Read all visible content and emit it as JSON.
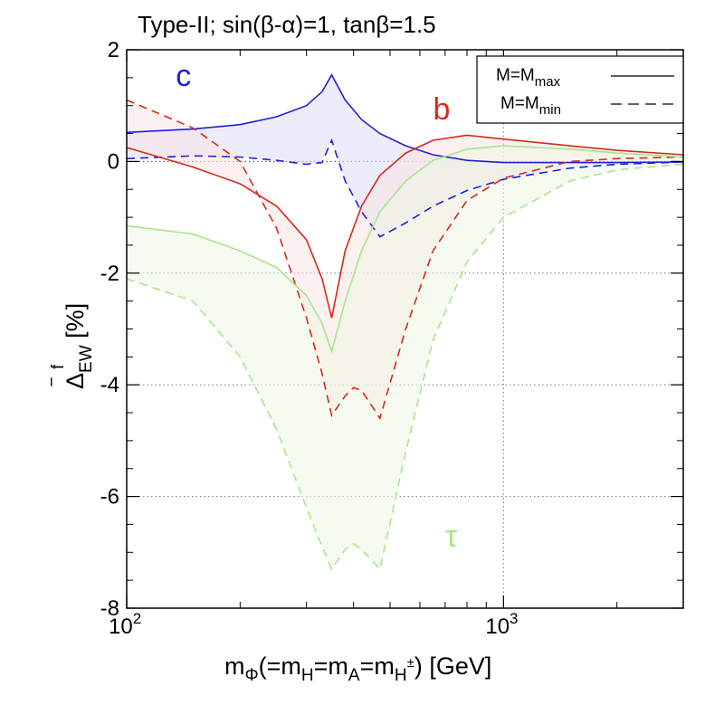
{
  "chart_data": {
    "type": "line",
    "title": "Type-II; sin(β-α)=1, tanβ=1.5",
    "xlabel": {
      "base": "m",
      "base_sub": "Φ",
      "eq1": "(=m",
      "eq1_sub": "H",
      "eq2": "=m",
      "eq2_sub": "A",
      "eq3": "=m",
      "eq3_sub": "H",
      "eq3_sup": "±",
      "tail": ") [GeV]"
    },
    "ylabel": {
      "base": "Δ",
      "overline": "‾",
      "sup": "f",
      "sub": "EW",
      "tail": " [%]"
    },
    "xscale": "log",
    "xlim": [
      100,
      3000
    ],
    "ylim": [
      -8,
      2
    ],
    "x_ticks": [
      {
        "value": 100,
        "mantissa": "10",
        "exp": "2"
      },
      {
        "value": 1000,
        "mantissa": "10",
        "exp": "3"
      }
    ],
    "y_ticks": [
      {
        "value": 2,
        "label": "2"
      },
      {
        "value": 0,
        "label": "0"
      },
      {
        "value": -2,
        "label": "-2"
      },
      {
        "value": -4,
        "label": "-4"
      },
      {
        "value": -6,
        "label": "-6"
      },
      {
        "value": -8,
        "label": "-8"
      }
    ],
    "legend": {
      "position": "top-right",
      "entries": [
        {
          "prefix": "M=M",
          "sub": "max",
          "style": "solid"
        },
        {
          "prefix": "M=M",
          "sub": "min",
          "style": "dashed"
        }
      ]
    },
    "series": [
      {
        "name": "c",
        "label": "c",
        "color": "#1f1fdc",
        "fill": "#dcdcf6",
        "label_at": {
          "x": 135,
          "y": 1.35
        },
        "max": [
          [
            100,
            0.52
          ],
          [
            150,
            0.58
          ],
          [
            200,
            0.66
          ],
          [
            250,
            0.8
          ],
          [
            300,
            1.0
          ],
          [
            330,
            1.25
          ],
          [
            350,
            1.55
          ],
          [
            380,
            1.1
          ],
          [
            420,
            0.75
          ],
          [
            470,
            0.5
          ],
          [
            550,
            0.28
          ],
          [
            650,
            0.12
          ],
          [
            800,
            0.02
          ],
          [
            1000,
            -0.02
          ],
          [
            1500,
            -0.02
          ],
          [
            2000,
            -0.02
          ],
          [
            3000,
            -0.01
          ]
        ],
        "min": [
          [
            100,
            0.05
          ],
          [
            150,
            0.1
          ],
          [
            200,
            0.08
          ],
          [
            250,
            0.02
          ],
          [
            300,
            -0.05
          ],
          [
            330,
            -0.02
          ],
          [
            350,
            0.38
          ],
          [
            380,
            -0.35
          ],
          [
            420,
            -0.9
          ],
          [
            470,
            -1.35
          ],
          [
            550,
            -1.1
          ],
          [
            650,
            -0.8
          ],
          [
            800,
            -0.52
          ],
          [
            1000,
            -0.32
          ],
          [
            1500,
            -0.12
          ],
          [
            2000,
            -0.05
          ],
          [
            3000,
            -0.01
          ]
        ]
      },
      {
        "name": "b",
        "label": "b",
        "color": "#d42a1a",
        "fill": "#fbe3e3",
        "label_at": {
          "x": 650,
          "y": 0.75
        },
        "max": [
          [
            100,
            0.25
          ],
          [
            150,
            -0.1
          ],
          [
            200,
            -0.4
          ],
          [
            250,
            -0.8
          ],
          [
            300,
            -1.4
          ],
          [
            330,
            -2.1
          ],
          [
            350,
            -2.8
          ],
          [
            380,
            -1.6
          ],
          [
            420,
            -0.8
          ],
          [
            470,
            -0.25
          ],
          [
            550,
            0.15
          ],
          [
            650,
            0.38
          ],
          [
            800,
            0.47
          ],
          [
            1000,
            0.4
          ],
          [
            1500,
            0.28
          ],
          [
            2000,
            0.2
          ],
          [
            3000,
            0.12
          ]
        ],
        "min": [
          [
            100,
            1.1
          ],
          [
            150,
            0.6
          ],
          [
            200,
            0.0
          ],
          [
            250,
            -1.2
          ],
          [
            300,
            -2.8
          ],
          [
            330,
            -3.8
          ],
          [
            350,
            -4.55
          ],
          [
            380,
            -4.2
          ],
          [
            400,
            -4.05
          ],
          [
            420,
            -4.1
          ],
          [
            470,
            -4.6
          ],
          [
            550,
            -3.0
          ],
          [
            650,
            -1.6
          ],
          [
            800,
            -0.7
          ],
          [
            1000,
            -0.3
          ],
          [
            1500,
            0.0
          ],
          [
            2000,
            0.05
          ],
          [
            3000,
            0.08
          ]
        ]
      },
      {
        "name": "tau",
        "label": "τ",
        "color": "#a8e68a",
        "fill": "#ecf8e4",
        "label_at": {
          "x": 700,
          "y": -6.9
        },
        "max": [
          [
            100,
            -1.15
          ],
          [
            150,
            -1.3
          ],
          [
            200,
            -1.6
          ],
          [
            250,
            -1.9
          ],
          [
            300,
            -2.4
          ],
          [
            330,
            -2.9
          ],
          [
            350,
            -3.4
          ],
          [
            380,
            -2.5
          ],
          [
            420,
            -1.6
          ],
          [
            470,
            -0.9
          ],
          [
            550,
            -0.35
          ],
          [
            650,
            0.02
          ],
          [
            800,
            0.22
          ],
          [
            1000,
            0.28
          ],
          [
            1500,
            0.22
          ],
          [
            2000,
            0.15
          ],
          [
            3000,
            0.08
          ]
        ],
        "min": [
          [
            100,
            -2.1
          ],
          [
            150,
            -2.5
          ],
          [
            200,
            -3.5
          ],
          [
            250,
            -4.8
          ],
          [
            300,
            -6.2
          ],
          [
            330,
            -6.9
          ],
          [
            350,
            -7.3
          ],
          [
            380,
            -6.95
          ],
          [
            400,
            -6.85
          ],
          [
            420,
            -6.95
          ],
          [
            470,
            -7.3
          ],
          [
            550,
            -5.2
          ],
          [
            650,
            -3.2
          ],
          [
            800,
            -1.8
          ],
          [
            1000,
            -1.0
          ],
          [
            1500,
            -0.35
          ],
          [
            2000,
            -0.15
          ],
          [
            3000,
            -0.05
          ]
        ]
      }
    ]
  }
}
